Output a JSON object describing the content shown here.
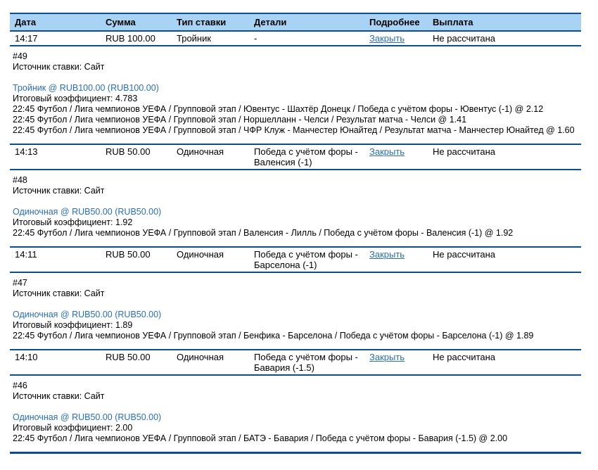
{
  "colors": {
    "header_bg": "#a9d3f4",
    "border_navy": "#0d4d8c",
    "link_blue": "#2a6fad"
  },
  "table": {
    "columns": {
      "date": "Дата",
      "amount": "Сумма",
      "bet_type": "Тип ставки",
      "details": "Детали",
      "more": "Подробнее",
      "payout": "Выплата"
    }
  },
  "bets": [
    {
      "time": "14:17",
      "amount": "RUB 100.00",
      "bet_type": "Тройник",
      "details": "-",
      "more_link": "Закрыть",
      "payout": "Не рассчитана",
      "id": "#49",
      "source": "Источник ставки: Сайт",
      "summary": "Тройник @ RUB100.00 (RUB100.00)",
      "coefficient": "Итоговый коэффициент: 4.783",
      "selections": [
        "22:45 Футбол / Лига чемпионов УЕФА / Групповой этап / Ювентус - Шахтёр Донецк / Победа с учётом форы - Ювентус (-1) @ 2.12",
        "22:45 Футбол / Лига чемпионов УЕФА / Групповой этап / Норшелланн - Челси / Результат матча - Челси @ 1.41",
        "22:45 Футбол / Лига чемпионов УЕФА / Групповой этап / ЧФР Клуж - Манчестер Юнайтед / Результат матча - Манчестер Юнайтед @ 1.60"
      ]
    },
    {
      "time": "14:13",
      "amount": "RUB 50.00",
      "bet_type": "Одиночная",
      "details": "Победа с учётом форы - Валенсия (-1)",
      "more_link": "Закрыть",
      "payout": "Не рассчитана",
      "id": "#48",
      "source": "Источник ставки: Сайт",
      "summary": "Одиночная @ RUB50.00 (RUB50.00)",
      "coefficient": "Итоговый коэффициент: 1.92",
      "selections": [
        "22:45 Футбол / Лига чемпионов УЕФА / Групповой этап / Валенсия - Лилль / Победа с учётом форы - Валенсия (-1) @ 1.92"
      ]
    },
    {
      "time": "14:11",
      "amount": "RUB 50.00",
      "bet_type": "Одиночная",
      "details": "Победа с учётом форы - Барселона (-1)",
      "more_link": "Закрыть",
      "payout": "Не рассчитана",
      "id": "#47",
      "source": "Источник ставки: Сайт",
      "summary": "Одиночная @ RUB50.00 (RUB50.00)",
      "coefficient": "Итоговый коэффициент: 1.89",
      "selections": [
        "22:45 Футбол / Лига чемпионов УЕФА / Групповой этап / Бенфика - Барселона / Победа с учётом форы - Барселона (-1) @ 1.89"
      ]
    },
    {
      "time": "14:10",
      "amount": "RUB 50.00",
      "bet_type": "Одиночная",
      "details": "Победа с учётом форы - Бавария (-1.5)",
      "more_link": "Закрыть",
      "payout": "Не рассчитана",
      "id": "#46",
      "source": "Источник ставки: Сайт",
      "summary": "Одиночная @ RUB50.00 (RUB50.00)",
      "coefficient": "Итоговый коэффициент: 2.00",
      "selections": [
        "22:45 Футбол / Лига чемпионов УЕФА / Групповой этап / БАТЭ - Бавария / Победа с учётом форы - Бавария (-1.5) @ 2.00"
      ]
    }
  ]
}
